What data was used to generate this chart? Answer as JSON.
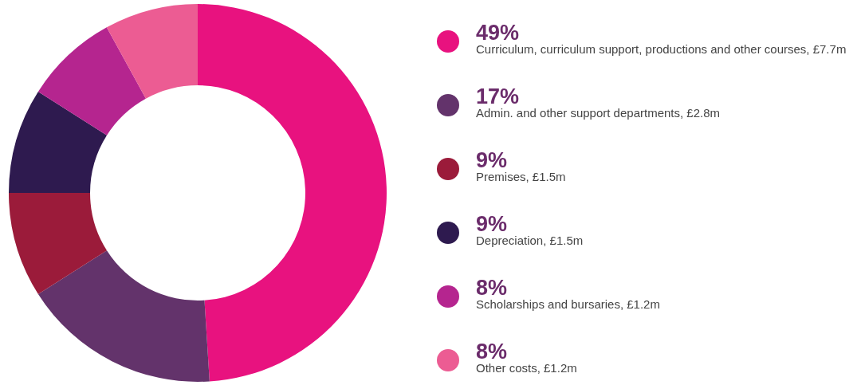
{
  "chart_data": {
    "type": "donut",
    "categories": [
      "Curriculum, curriculum support, productions and other courses, £7.7m",
      "Admin. and other support departments, £2.8m",
      "Premises, £1.5m",
      "Depreciation, £1.5m",
      "Scholarships and bursaries, £1.2m",
      "Other costs, £1.2m"
    ],
    "values": [
      49,
      17,
      9,
      9,
      8,
      8
    ],
    "colors": [
      "#e8127f",
      "#63336b",
      "#9b1b3a",
      "#2e1a4f",
      "#b5258f",
      "#ec5c93"
    ],
    "value_labels": [
      "49%",
      "17%",
      "9%",
      "9%",
      "8%",
      "8%"
    ],
    "legend": "right"
  }
}
